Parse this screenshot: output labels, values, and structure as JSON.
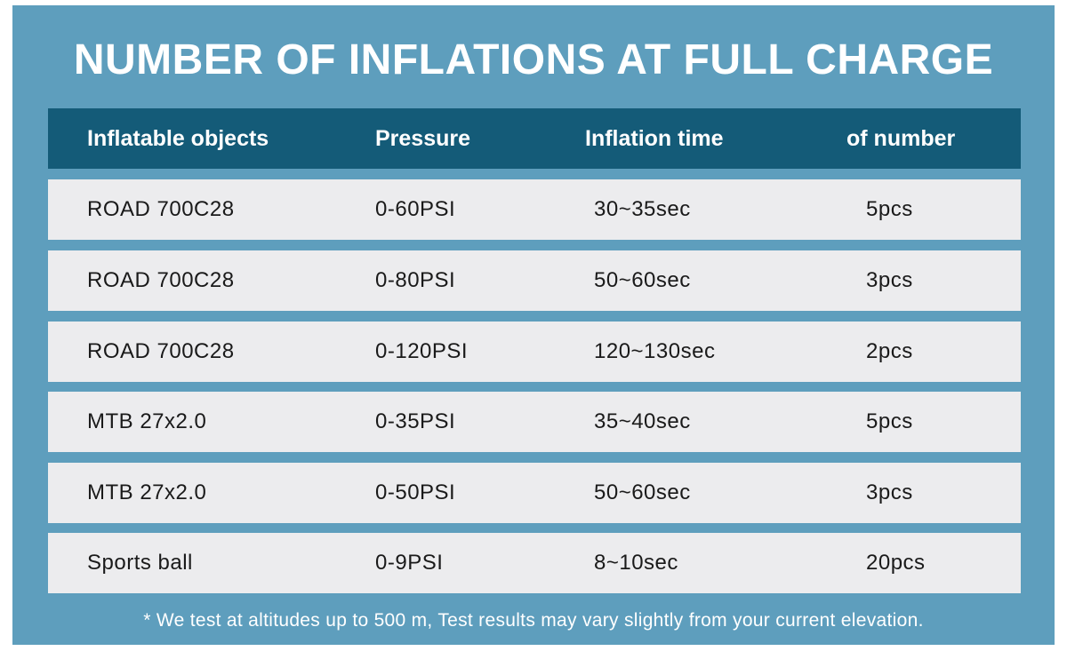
{
  "header": {
    "title": "NUMBER OF INFLATIONS AT FULL CHARGE"
  },
  "table": {
    "columns": [
      "Inflatable objects",
      "Pressure",
      "Inflation time",
      "of number"
    ],
    "rows": [
      [
        "ROAD 700C28",
        "0-60PSI",
        "30~35sec",
        "5pcs"
      ],
      [
        "ROAD 700C28",
        "0-80PSI",
        "50~60sec",
        "3pcs"
      ],
      [
        "ROAD 700C28",
        "0-120PSI",
        "120~130sec",
        "2pcs"
      ],
      [
        "MTB 27x2.0",
        "0-35PSI",
        "35~40sec",
        "5pcs"
      ],
      [
        "MTB 27x2.0",
        "0-50PSI",
        "50~60sec",
        "3pcs"
      ],
      [
        "Sports ball",
        "0-9PSI",
        "8~10sec",
        "20pcs"
      ]
    ]
  },
  "footnote": "* We test at altitudes up to 500 m, Test results may vary slightly from your current elevation."
}
